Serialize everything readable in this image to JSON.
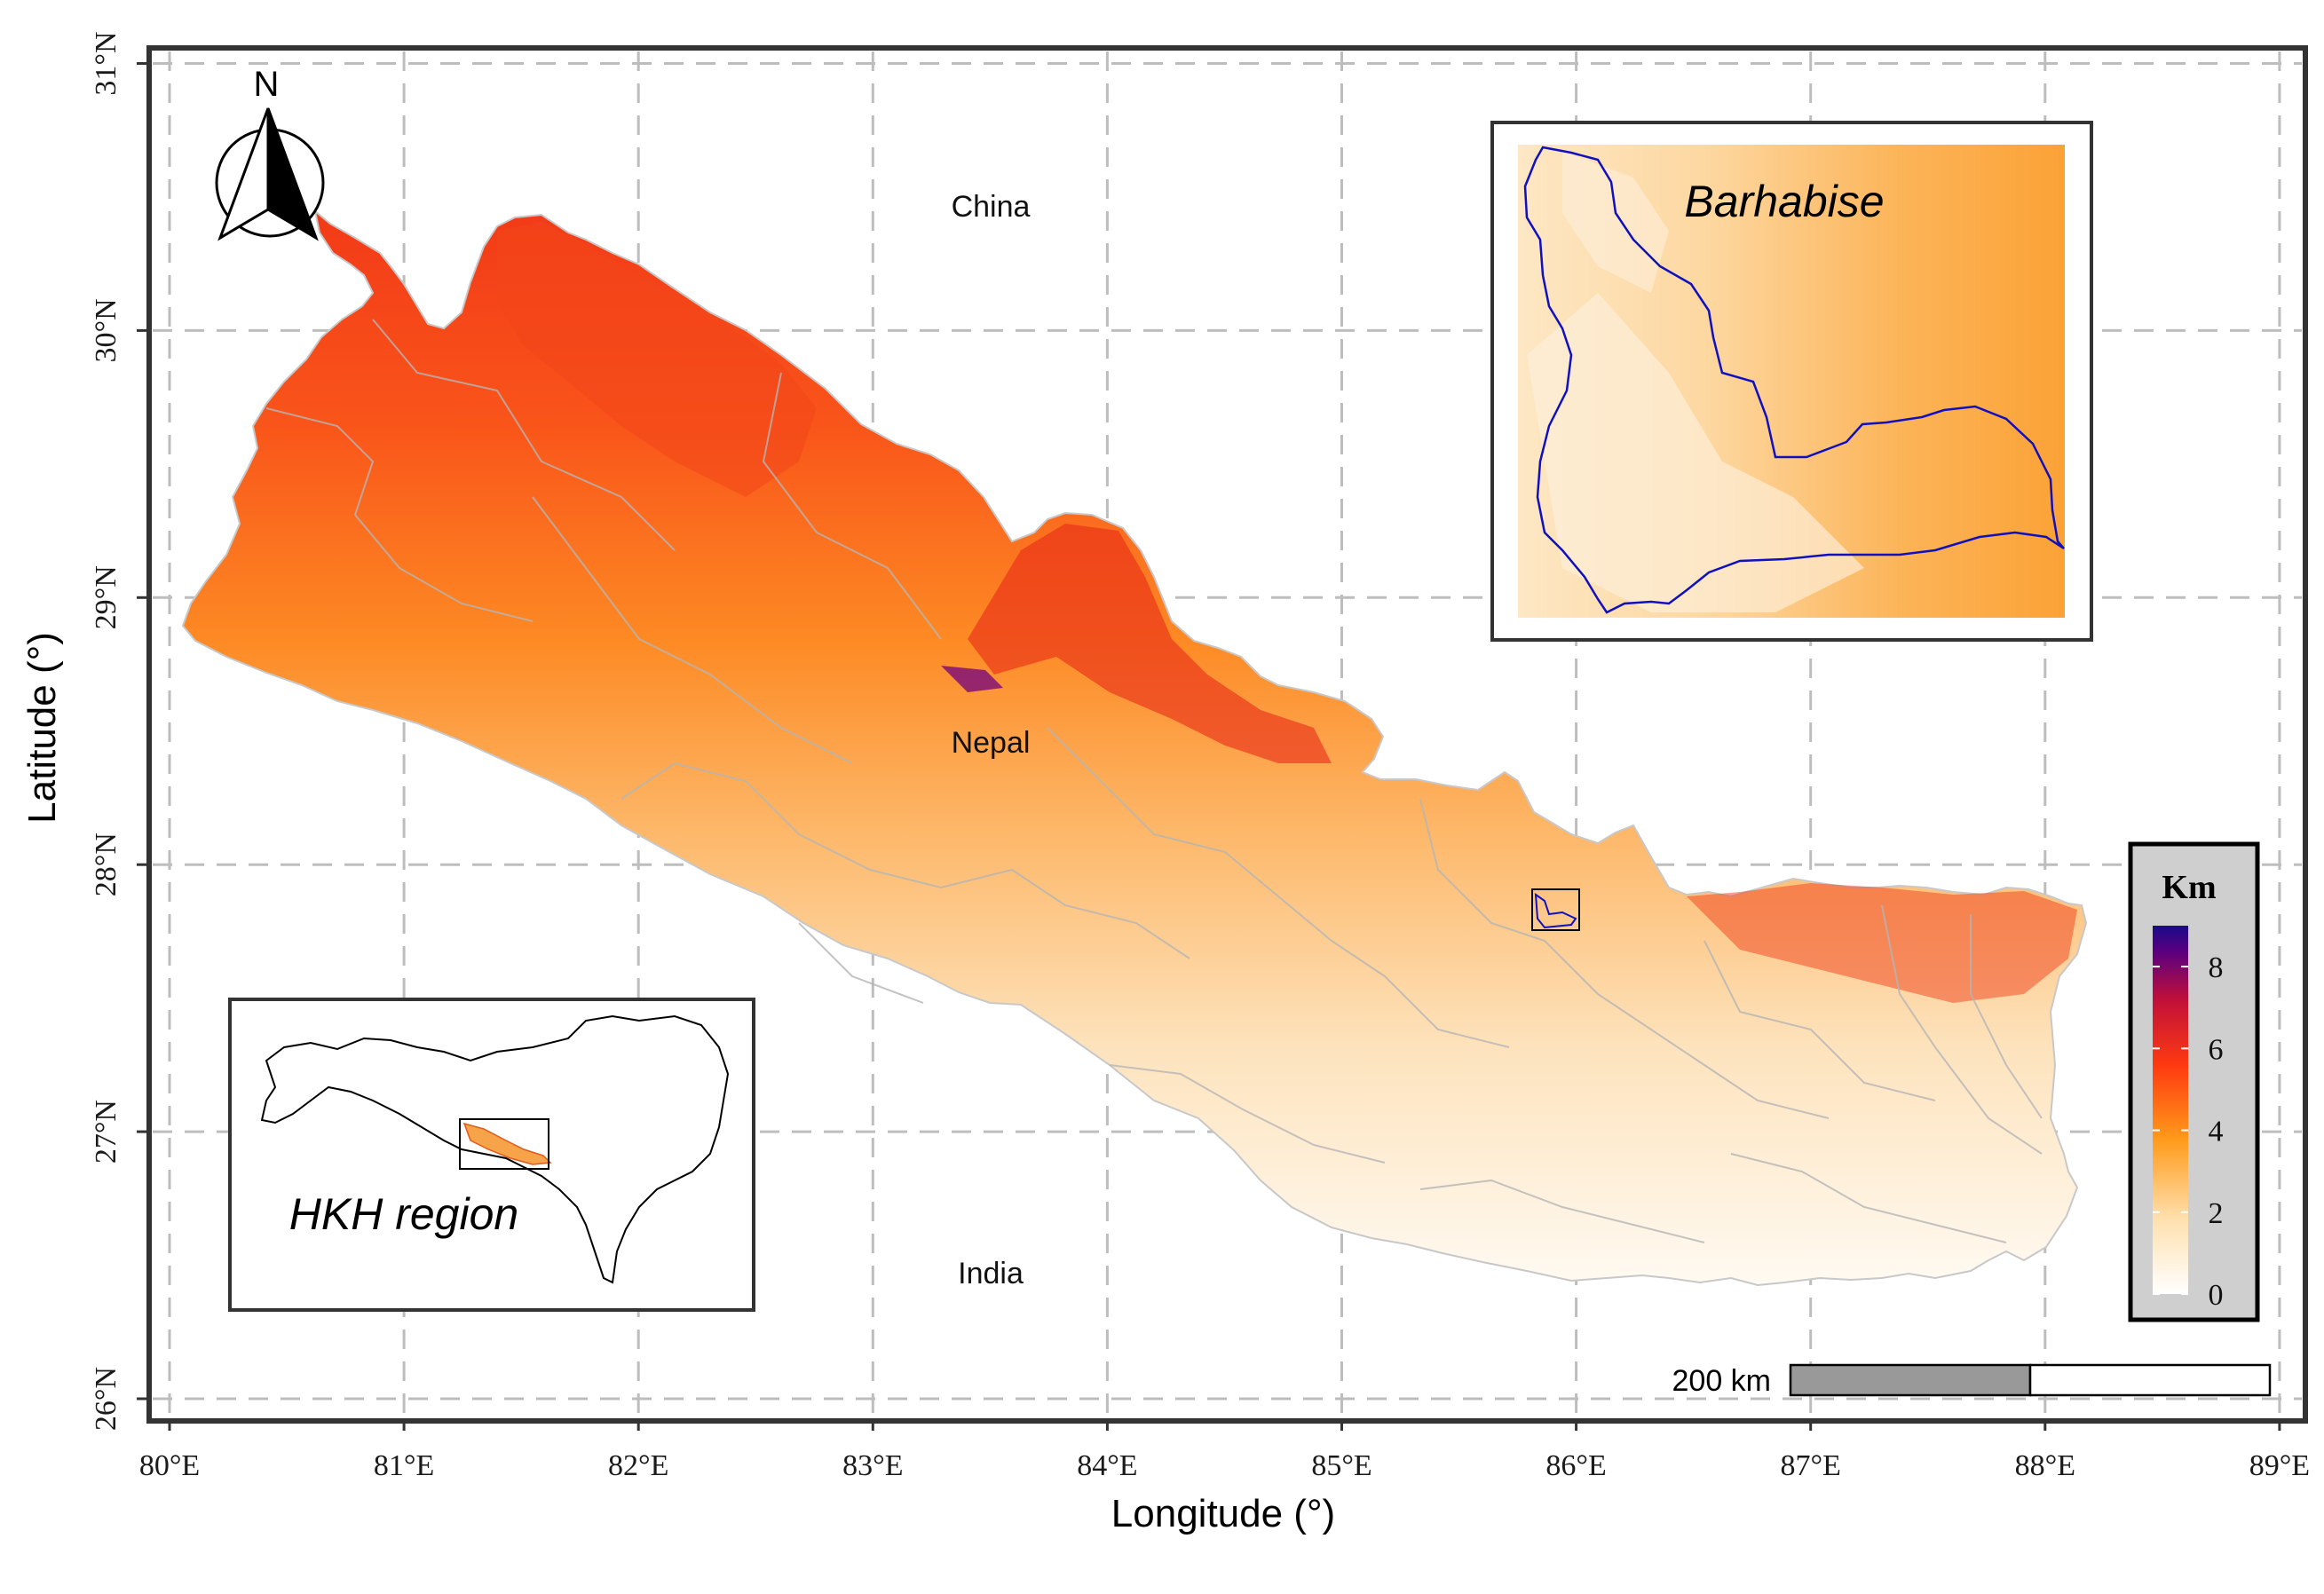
{
  "map": {
    "xlabel": "Longitude (°)",
    "ylabel": "Latitude (°)",
    "lon_range": [
      80,
      89
    ],
    "lat_range": [
      26,
      31
    ],
    "lon_ticks": [
      "80°E",
      "81°E",
      "82°E",
      "83°E",
      "84°E",
      "85°E",
      "86°E",
      "87°E",
      "88°E",
      "89°E"
    ],
    "lat_ticks": [
      "26°N",
      "27°N",
      "28°N",
      "29°N",
      "30°N",
      "31°N"
    ],
    "grid": "dashed",
    "labels": {
      "china": "China",
      "nepal": "Nepal",
      "india": "India"
    },
    "north_arrow": "N",
    "scale_bar": "200 km"
  },
  "inset_barhabise": {
    "title": "Barhabise"
  },
  "inset_hkh": {
    "title": "HKH region"
  },
  "legend": {
    "title": "Km",
    "ticks": [
      "0",
      "2",
      "4",
      "6",
      "8"
    ],
    "range": [
      0,
      9
    ],
    "colors": [
      "#ffffff",
      "#ffd9a0",
      "#ff9a1a",
      "#ff3a10",
      "#c0103a",
      "#4a0080",
      "#1a0a8a"
    ]
  },
  "colors": {
    "frame": "#333333",
    "grid": "#bdbdbd",
    "district_lines": "#b5b5b5",
    "basin_outline": "#1010c0"
  }
}
